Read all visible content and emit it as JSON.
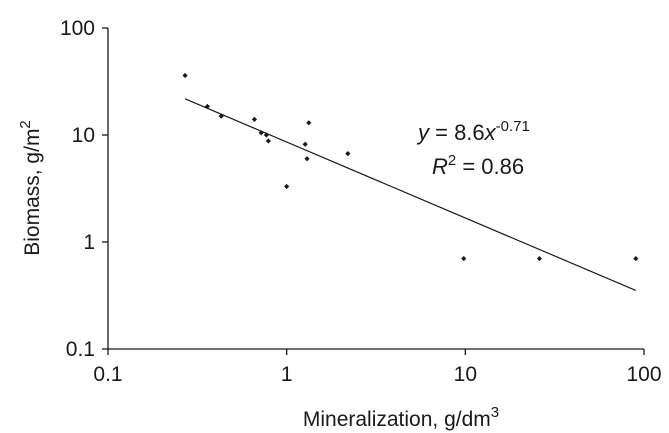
{
  "chart_data": {
    "type": "scatter",
    "x_scale": "log",
    "y_scale": "log",
    "xlim": [
      0.1,
      100
    ],
    "ylim": [
      0.1,
      100
    ],
    "xlabel_text": "Mineralization, g/dm",
    "xlabel_sup": "3",
    "ylabel_text": "Biomass, g/m",
    "ylabel_sup": "2",
    "x_ticks": [
      "0.1",
      "1",
      "10",
      "100"
    ],
    "y_ticks": [
      "0.1",
      "1",
      "10",
      "100"
    ],
    "grid": false,
    "legend": "none",
    "points": [
      {
        "x": 0.27,
        "y": 36
      },
      {
        "x": 0.36,
        "y": 18.5
      },
      {
        "x": 0.43,
        "y": 15
      },
      {
        "x": 0.66,
        "y": 14
      },
      {
        "x": 0.72,
        "y": 10.5
      },
      {
        "x": 0.77,
        "y": 10
      },
      {
        "x": 0.79,
        "y": 8.8
      },
      {
        "x": 1.0,
        "y": 3.3
      },
      {
        "x": 1.27,
        "y": 8.2
      },
      {
        "x": 1.3,
        "y": 6.0
      },
      {
        "x": 1.33,
        "y": 13
      },
      {
        "x": 2.2,
        "y": 6.7
      },
      {
        "x": 9.8,
        "y": 0.7
      },
      {
        "x": 26,
        "y": 0.7
      },
      {
        "x": 90,
        "y": 0.7
      }
    ],
    "trendline": {
      "coefficient": 8.6,
      "exponent": -0.71,
      "x_range": [
        0.27,
        90
      ],
      "eq_y": "y",
      "eq_mid": " = 8.6",
      "eq_x": "x",
      "eq_exp": "-0.71",
      "r2_r": "R",
      "r2_sup": "2",
      "r2_rest": " = 0.86"
    },
    "colors": {
      "points": "#1a1a1a",
      "line": "#1a1a1a",
      "axes": "#1a1a1a"
    }
  }
}
